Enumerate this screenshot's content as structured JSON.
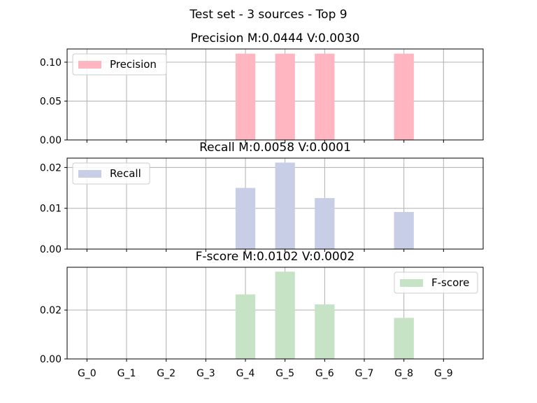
{
  "figure": {
    "suptitle": "Test set - 3 sources - Top 9"
  },
  "chart_data": [
    {
      "type": "bar",
      "title": "Precision M:0.0444 V:0.0030",
      "categories": [
        "G_0",
        "G_1",
        "G_2",
        "G_3",
        "G_4",
        "G_5",
        "G_6",
        "G_7",
        "G_8",
        "G_9"
      ],
      "series": [
        {
          "name": "Precision",
          "values": [
            0,
            0,
            0,
            0,
            0.111,
            0.111,
            0.111,
            0,
            0.111,
            0
          ]
        }
      ],
      "ylim": [
        0,
        0.117
      ],
      "yticks": [
        "0.00",
        "0.05",
        "0.10"
      ],
      "ytick_values": [
        0,
        0.05,
        0.1
      ],
      "color": "#ffb6c1",
      "grid": true,
      "legend": "upper-left",
      "show_xticklabels": false
    },
    {
      "type": "bar",
      "title": "Recall M:0.0058 V:0.0001",
      "categories": [
        "G_0",
        "G_1",
        "G_2",
        "G_3",
        "G_4",
        "G_5",
        "G_6",
        "G_7",
        "G_8",
        "G_9"
      ],
      "series": [
        {
          "name": "Recall",
          "values": [
            0,
            0,
            0,
            0,
            0.015,
            0.0212,
            0.0125,
            0,
            0.0091,
            0
          ]
        }
      ],
      "ylim": [
        0,
        0.0223
      ],
      "yticks": [
        "0.00",
        "0.01",
        "0.02"
      ],
      "ytick_values": [
        0,
        0.01,
        0.02
      ],
      "color": "#c8cee5",
      "grid": true,
      "legend": "upper-left",
      "show_xticklabels": false
    },
    {
      "type": "bar",
      "title": "F-score M:0.0102 V:0.0002",
      "categories": [
        "G_0",
        "G_1",
        "G_2",
        "G_3",
        "G_4",
        "G_5",
        "G_6",
        "G_7",
        "G_8",
        "G_9"
      ],
      "series": [
        {
          "name": "F-score",
          "values": [
            0,
            0,
            0,
            0,
            0.0264,
            0.0357,
            0.0223,
            0,
            0.0168,
            0
          ]
        }
      ],
      "ylim": [
        0,
        0.0375
      ],
      "yticks": [
        "0.00",
        "0.02"
      ],
      "ytick_values": [
        0,
        0.02
      ],
      "color": "#c6e3c6",
      "grid": true,
      "legend": "upper-right",
      "show_xticklabels": true
    }
  ]
}
